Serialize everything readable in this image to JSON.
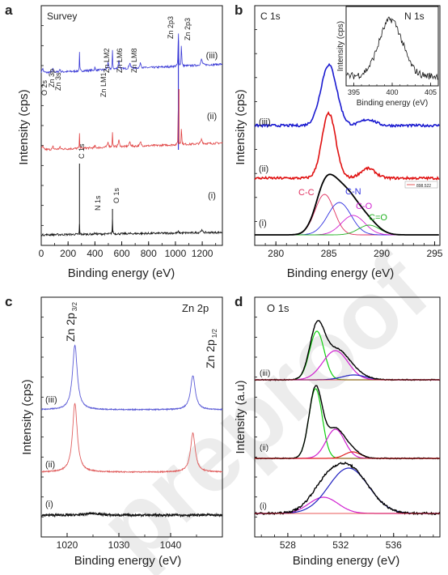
{
  "watermark": "preproof",
  "chart_data": [
    {
      "panel": "a",
      "type": "line",
      "title": "Survey",
      "xlabel": "Binding energy (eV)",
      "ylabel": "Intensity (cps)",
      "xlim": [
        0,
        1350
      ],
      "xticks": [
        "0",
        "200",
        "400",
        "600",
        "800",
        "1000",
        "1200"
      ],
      "peak_labels": [
        {
          "text": "O 2s",
          "x": 23
        },
        {
          "text": "Zn 3p",
          "x": 88
        },
        {
          "text": "Zn 3s",
          "x": 140
        },
        {
          "text": "Zn LM1",
          "x": 498
        },
        {
          "text": "Zn LM2",
          "x": 580
        },
        {
          "text": "Zn LM6",
          "x": 660
        },
        {
          "text": "Zn LM8",
          "x": 740
        },
        {
          "text": "Zn 2p3",
          "x": 1022
        },
        {
          "text": "Zn 2p3",
          "x": 1045
        },
        {
          "text": "C 1s",
          "x": 285
        },
        {
          "text": "N 1s",
          "x": 400
        },
        {
          "text": "O 1s",
          "x": 531
        }
      ],
      "series": [
        {
          "name": "(iii)",
          "color": "#3b3bd6"
        },
        {
          "name": "(ii)",
          "color": "#e04040"
        },
        {
          "name": "(i)",
          "color": "#111111"
        }
      ]
    },
    {
      "panel": "b",
      "type": "line",
      "title": "C 1s",
      "xlabel": "Binding energy (eV)",
      "ylabel": "Intensity (cps)",
      "xlim": [
        278,
        295.5
      ],
      "xticks": [
        "280",
        "285",
        "290",
        "295"
      ],
      "series": [
        {
          "name": "(iii)",
          "color": "#1a1ad0"
        },
        {
          "name": "(ii)",
          "color": "#e01010"
        },
        {
          "name": "(i)",
          "color": "#000000"
        }
      ],
      "components": [
        {
          "name": "C-C",
          "center": 284.6,
          "color": "#e03060"
        },
        {
          "name": "C-N",
          "center": 286.0,
          "color": "#3030e0"
        },
        {
          "name": "C-O",
          "center": 287.3,
          "color": "#d020d0"
        },
        {
          "name": "C=O",
          "center": 288.8,
          "color": "#20b020"
        }
      ],
      "legend_entry": "898.522",
      "inset": {
        "title": "N 1s",
        "xlabel": "Binding energy (eV)",
        "ylabel": "Intensity (cps)",
        "xlim": [
          394,
          406
        ],
        "xticks": [
          "395",
          "400",
          "405"
        ],
        "peak_center": 399.8
      }
    },
    {
      "panel": "c",
      "type": "line",
      "title": "Zn 2p",
      "xlabel": "Binding energy (eV)",
      "ylabel": "Intensity (cps)",
      "xlim": [
        1015,
        1050
      ],
      "xticks": [
        "1020",
        "1030",
        "1040"
      ],
      "peak_labels": [
        {
          "text": "Zn 2p",
          "sub": "3/2",
          "x": 1021.5
        },
        {
          "text": "Zn 2p",
          "sub": "1/2",
          "x": 1044.3
        }
      ],
      "series": [
        {
          "name": "(iii)",
          "color": "#5a5ad6"
        },
        {
          "name": "(ii)",
          "color": "#e06060"
        },
        {
          "name": "(i)",
          "color": "#111111"
        }
      ]
    },
    {
      "panel": "d",
      "type": "line",
      "title": "O 1s",
      "xlabel": "Binding energy (eV)",
      "ylabel": "Intensity (a.u)",
      "xlim": [
        525.5,
        539.5
      ],
      "xticks": [
        "528",
        "532",
        "536"
      ],
      "series": [
        {
          "name": "(iii)"
        },
        {
          "name": "(ii)"
        },
        {
          "name": "(i)"
        }
      ],
      "component_colors": {
        "envelope": "#000000",
        "green": "#10d010",
        "magenta": "#d020d0",
        "red": "#e02020",
        "blue": "#2020c0"
      }
    }
  ]
}
